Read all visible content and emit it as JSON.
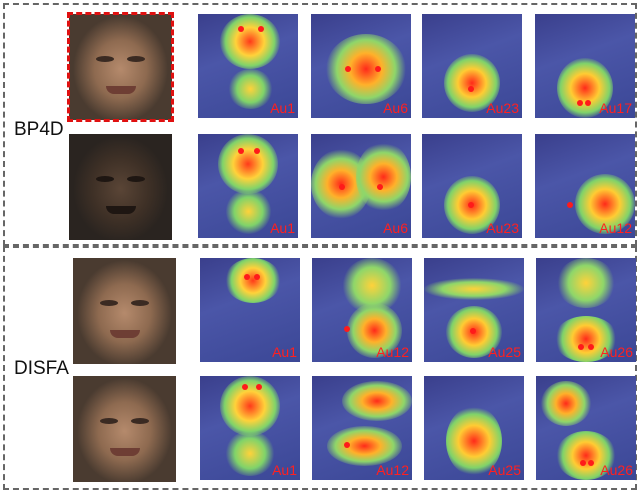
{
  "sections": [
    {
      "label": "BP4D",
      "rows": [
        {
          "maps": [
            {
              "au": "Au1"
            },
            {
              "au": "Au6"
            },
            {
              "au": "Au23"
            },
            {
              "au": "Au17"
            }
          ]
        },
        {
          "maps": [
            {
              "au": "Au1"
            },
            {
              "au": "Au6"
            },
            {
              "au": "Au23"
            },
            {
              "au": "Au12"
            }
          ]
        }
      ]
    },
    {
      "label": "DISFA",
      "rows": [
        {
          "maps": [
            {
              "au": "Au1"
            },
            {
              "au": "Au12"
            },
            {
              "au": "Au25"
            },
            {
              "au": "Au26"
            }
          ]
        },
        {
          "maps": [
            {
              "au": "Au1"
            },
            {
              "au": "Au12"
            },
            {
              "au": "Au25"
            },
            {
              "au": "Au26"
            }
          ]
        }
      ]
    }
  ],
  "colors": {
    "frame": "#666666",
    "highlight": "#e01010",
    "label_text": "#ff2020"
  }
}
